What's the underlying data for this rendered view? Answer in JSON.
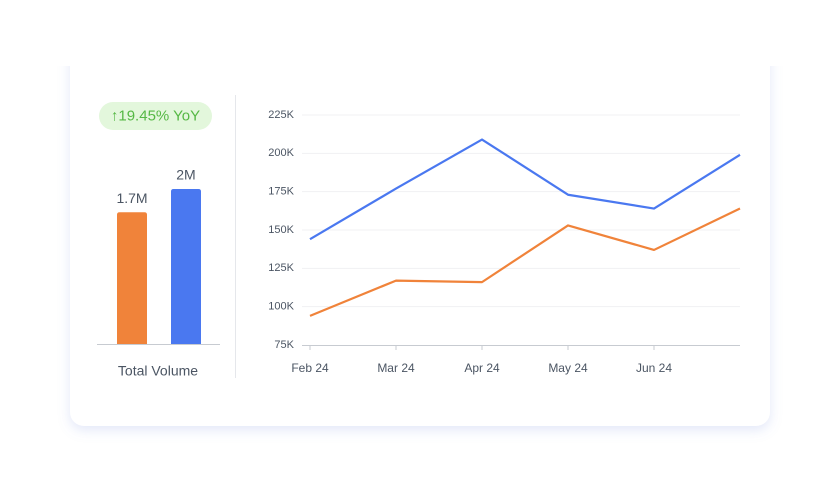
{
  "chart_data": [
    {
      "type": "bar",
      "annotation": "↑19.45% YoY",
      "xlabel": "Total Volume",
      "values": [
        1.7,
        2
      ],
      "value_labels": [
        "1.7M",
        "2M"
      ],
      "colors": [
        "#f0833a",
        "#4a78f0"
      ]
    },
    {
      "type": "line",
      "categories": [
        "Feb 24",
        "Mar 24",
        "Apr 24",
        "May 24",
        "Jun 24",
        null
      ],
      "series": [
        {
          "color": "#4a78f0",
          "values": [
            144000,
            177000,
            209000,
            173000,
            164000,
            199000
          ]
        },
        {
          "color": "#f0833a",
          "values": [
            94000,
            117000,
            116000,
            153000,
            137000,
            164000
          ]
        }
      ],
      "ylim": [
        75000,
        225000
      ],
      "yticks": [
        {
          "value": 75000,
          "label": "75K"
        },
        {
          "value": 100000,
          "label": "100K"
        },
        {
          "value": 125000,
          "label": "125K"
        },
        {
          "value": 150000,
          "label": "150K"
        },
        {
          "value": 175000,
          "label": "175K"
        },
        {
          "value": 200000,
          "label": "200K"
        },
        {
          "value": 225000,
          "label": "225K"
        }
      ],
      "grid": true
    }
  ]
}
